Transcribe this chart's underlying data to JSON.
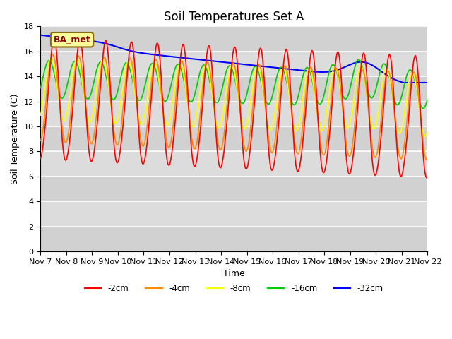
{
  "title": "Soil Temperatures Set A",
  "xlabel": "Time",
  "ylabel": "Soil Temperature (C)",
  "ylim": [
    0,
    18
  ],
  "yticks": [
    0,
    2,
    4,
    6,
    8,
    10,
    12,
    14,
    16,
    18
  ],
  "x_labels": [
    "Nov 7",
    "Nov 8",
    "Nov 9",
    "Nov 10",
    "Nov 11",
    "Nov 12",
    "Nov 13",
    "Nov 14",
    "Nov 15",
    "Nov 16",
    "Nov 17",
    "Nov 18",
    "Nov 19",
    "Nov 20",
    "Nov 21",
    "Nov 22"
  ],
  "legend_labels": [
    "-2cm",
    "-4cm",
    "-8cm",
    "-16cm",
    "-32cm"
  ],
  "colors": [
    "#ff0000",
    "#ff8800",
    "#ffff00",
    "#00cc00",
    "#0000ff"
  ],
  "annotation_text": "BA_met",
  "bg_color": "#e8e8e8",
  "n_points": 480,
  "title_fontsize": 12,
  "label_fontsize": 9,
  "tick_fontsize": 8
}
